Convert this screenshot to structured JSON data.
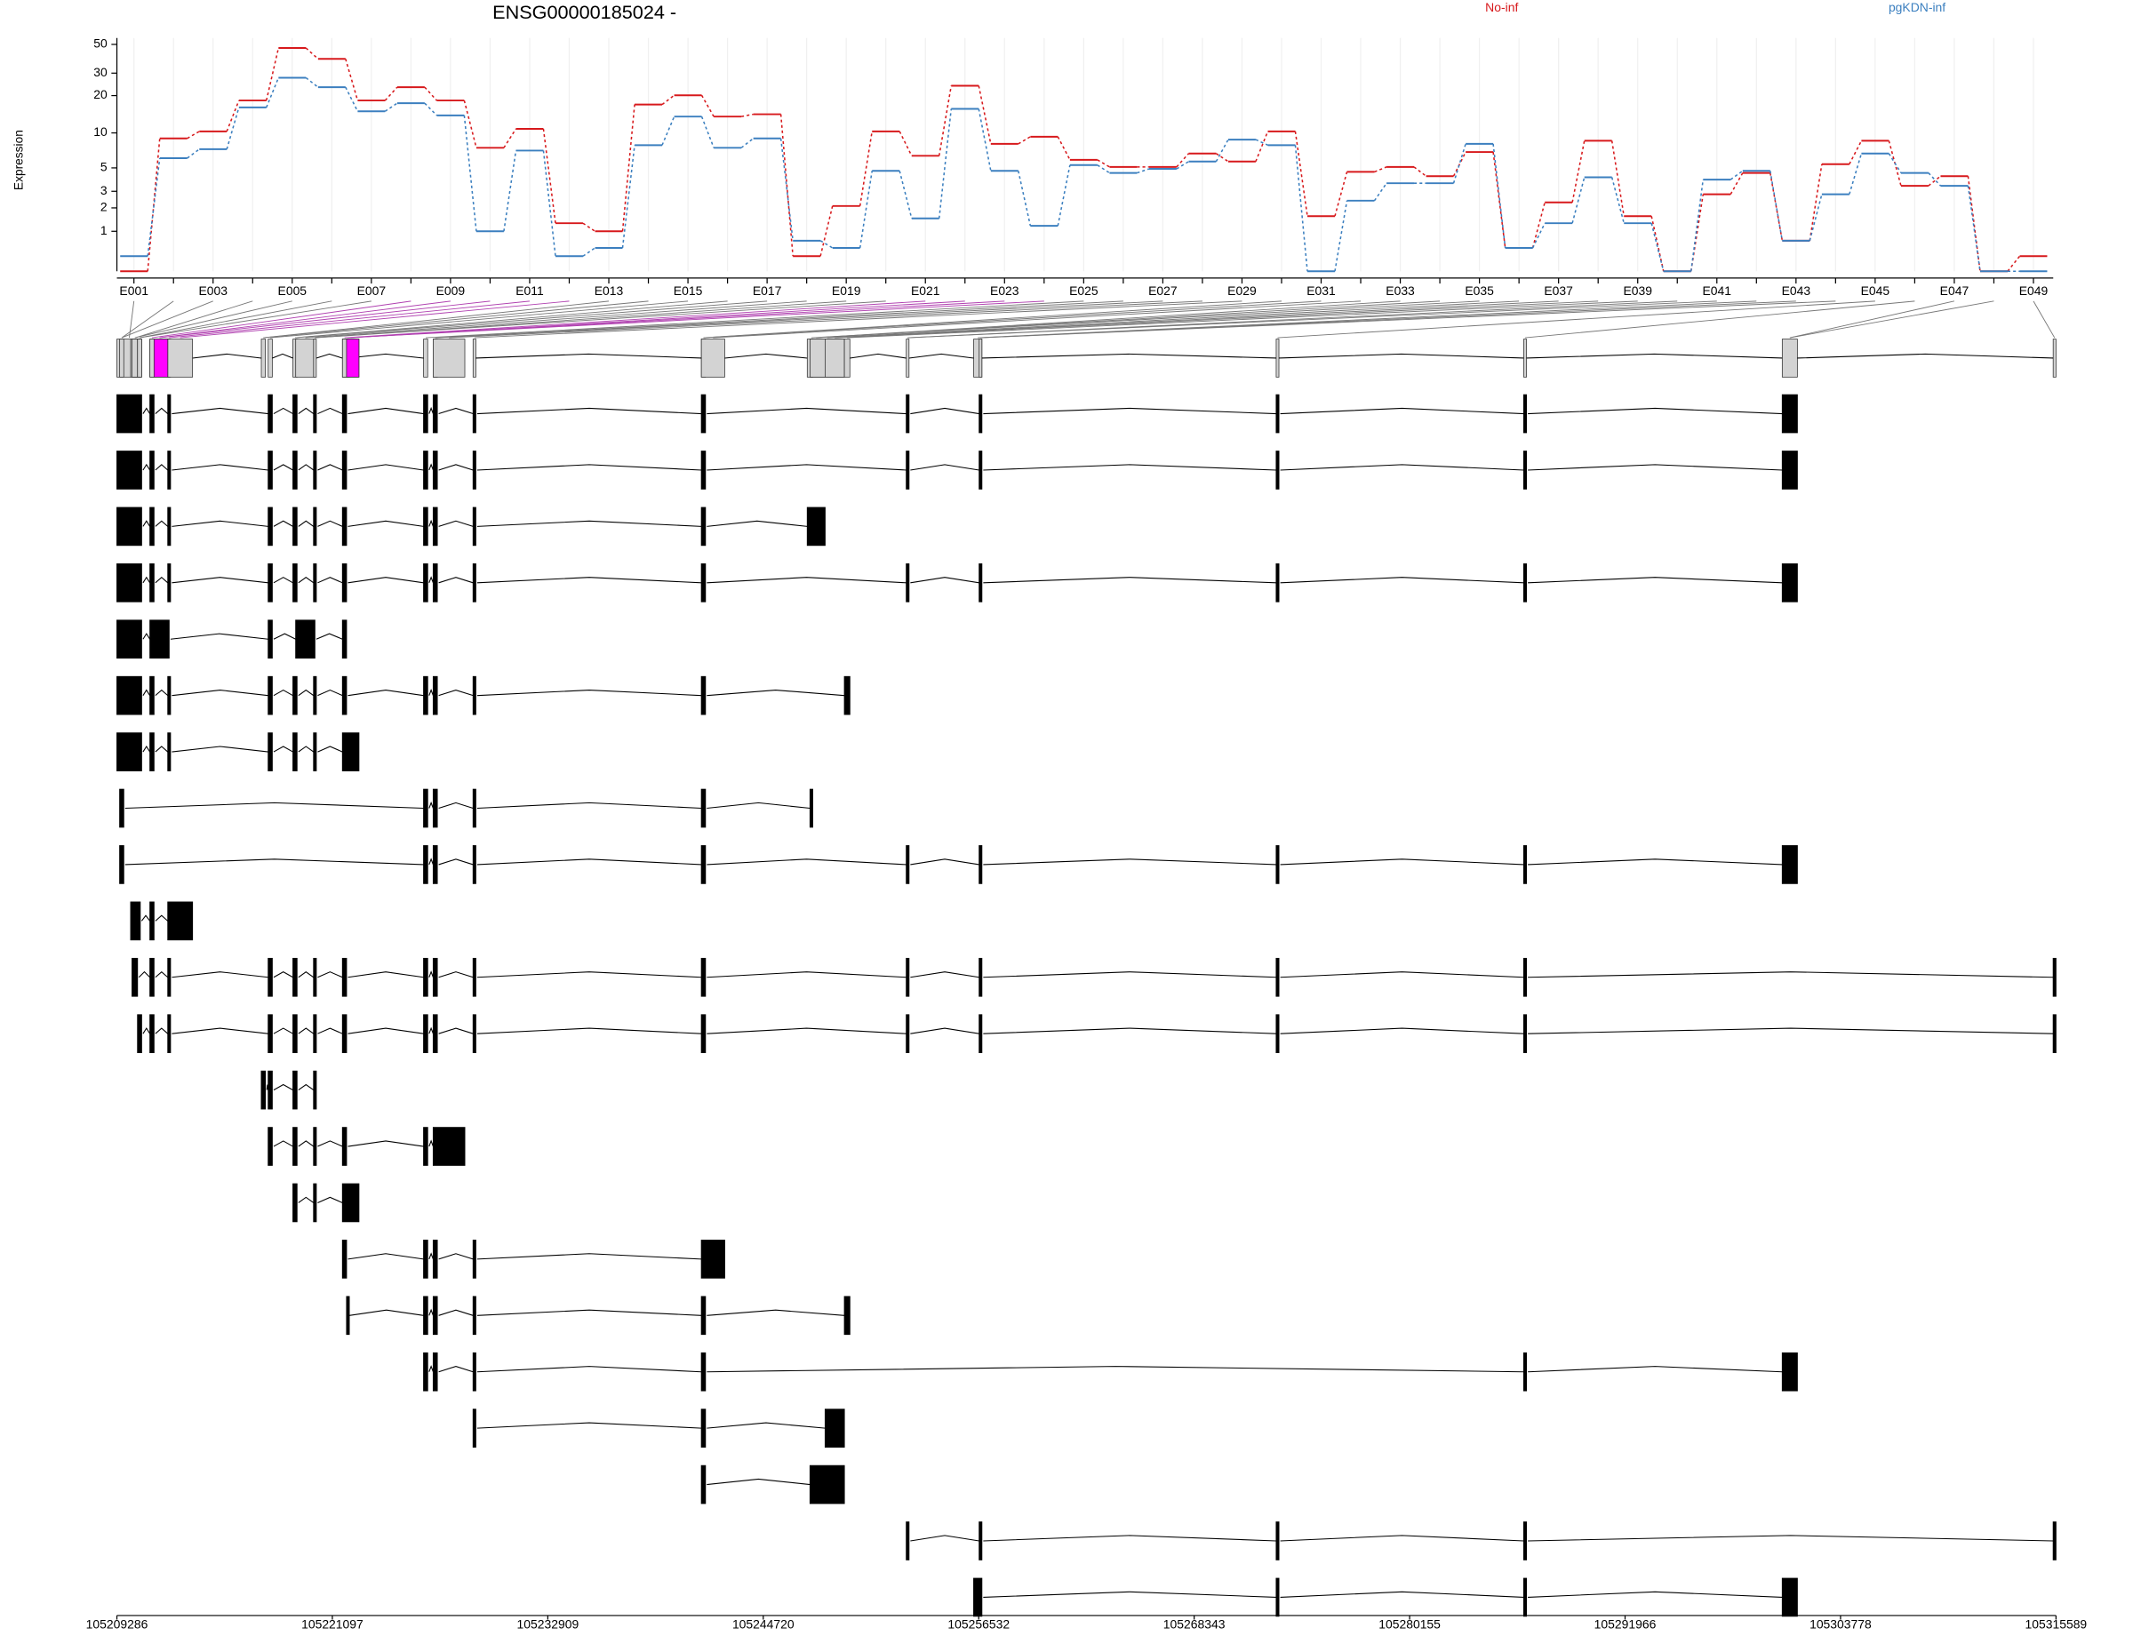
{
  "chart_data": {
    "type": "line",
    "title": "ENSG00000185024 -",
    "y_label": "Expression",
    "categories": [
      "E001",
      null,
      "E003",
      null,
      "E005",
      null,
      "E007",
      null,
      "E009",
      null,
      "E011",
      null,
      "E013",
      null,
      "E015",
      null,
      "E017",
      null,
      "E019",
      null,
      "E021",
      null,
      "E023",
      null,
      "E025",
      null,
      "E027",
      null,
      "E029",
      null,
      "E031",
      null,
      "E033",
      null,
      "E035",
      null,
      "E037",
      null,
      "E039",
      null,
      "E041",
      null,
      "E043",
      null,
      "E045",
      null,
      "E047",
      null,
      "E049"
    ],
    "yscale": "log1p",
    "ylim": [
      0,
      56
    ],
    "yticks": [
      1,
      2,
      3,
      5,
      10,
      20,
      30,
      50
    ],
    "grid": true,
    "series": [
      {
        "name": "No-inf",
        "color": "#d7191c",
        "values": [
          0,
          9,
          10.3,
          18.3,
          46.9,
          38.7,
          18.3,
          23.3,
          18.3,
          7.5,
          10.8,
          1.3,
          1,
          17,
          20.1,
          13.6,
          14.2,
          0.3,
          2.1,
          10.3,
          6.4,
          23.9,
          8.1,
          9.3,
          5.9,
          5.1,
          5.1,
          6.7,
          5.7,
          10.3,
          1.6,
          4.6,
          5.1,
          4.2,
          6.9,
          0.5,
          2.3,
          8.6,
          1.6,
          0,
          2.8,
          4.5,
          0.7,
          5.4,
          8.6,
          3.4,
          4.2,
          0,
          0.3
        ]
      },
      {
        "name": "pgKDN-inf",
        "color": "#3b7fbf",
        "values": [
          0.3,
          6.1,
          7.3,
          16.1,
          27.6,
          23.3,
          15,
          17.4,
          13.9,
          1,
          7.1,
          0.3,
          0.5,
          7.9,
          13.6,
          7.5,
          9,
          0.7,
          0.5,
          4.7,
          1.5,
          15.7,
          4.7,
          1.2,
          5.3,
          4.5,
          4.9,
          5.7,
          8.8,
          7.9,
          0,
          2.4,
          3.6,
          3.6,
          8.1,
          0.5,
          1.3,
          4.1,
          1.3,
          0,
          3.9,
          4.7,
          0.7,
          2.8,
          6.7,
          4.5,
          3.4,
          0,
          0
        ]
      }
    ],
    "gene_model": {
      "xlim": [
        105209286,
        105315589
      ],
      "xticks": [
        105209286,
        105221097,
        105232909,
        105244720,
        105256532,
        105268343,
        105280155,
        105291966,
        105303778,
        105315589
      ],
      "highlight_color": "#ff00ff",
      "highlight": [
        [
          105211322,
          105212075
        ],
        [
          105221876,
          105222555
        ]
      ],
      "transcripts": [
        [
          [
            105209286,
            105210643
          ],
          [
            105211095,
            105211322
          ],
          [
            105212075,
            105212226
          ],
          [
            105217579,
            105217805
          ],
          [
            105218936,
            105219162
          ],
          [
            105220067,
            105220218
          ],
          [
            105221650,
            105221876
          ],
          [
            105226098,
            105226324
          ],
          [
            105226626,
            105226852
          ],
          [
            105228812,
            105228963
          ],
          [
            105241327,
            105241553
          ],
          [
            105252560,
            105252711
          ],
          [
            105256555,
            105256706
          ],
          [
            105272839,
            105272990
          ],
          [
            105286409,
            105286560
          ],
          [
            105300582,
            105301412
          ]
        ],
        [
          [
            105209286,
            105210643
          ],
          [
            105211095,
            105211322
          ],
          [
            105212075,
            105212226
          ],
          [
            105217579,
            105217805
          ],
          [
            105218936,
            105219162
          ],
          [
            105220067,
            105220218
          ],
          [
            105221650,
            105221876
          ],
          [
            105226098,
            105226324
          ],
          [
            105226626,
            105226852
          ],
          [
            105228812,
            105228963
          ],
          [
            105241327,
            105241553
          ],
          [
            105252560,
            105252711
          ],
          [
            105256555,
            105256706
          ],
          [
            105272839,
            105272990
          ],
          [
            105286409,
            105286560
          ],
          [
            105300582,
            105301412
          ]
        ],
        [
          [
            105209286,
            105210643
          ],
          [
            105211095,
            105211322
          ],
          [
            105212075,
            105212226
          ],
          [
            105217579,
            105217805
          ],
          [
            105218936,
            105219162
          ],
          [
            105220067,
            105220218
          ],
          [
            105221650,
            105221876
          ],
          [
            105226098,
            105226324
          ],
          [
            105226626,
            105226852
          ],
          [
            105228812,
            105228963
          ],
          [
            105241327,
            105241553
          ],
          [
            105247132,
            105248112
          ]
        ],
        [
          [
            105209286,
            105210643
          ],
          [
            105211095,
            105211322
          ],
          [
            105212075,
            105212226
          ],
          [
            105217579,
            105217805
          ],
          [
            105218936,
            105219162
          ],
          [
            105220067,
            105220218
          ],
          [
            105221650,
            105221876
          ],
          [
            105226098,
            105226324
          ],
          [
            105226626,
            105226852
          ],
          [
            105228812,
            105228963
          ],
          [
            105241327,
            105241553
          ],
          [
            105252560,
            105252711
          ],
          [
            105256555,
            105256706
          ],
          [
            105272839,
            105272990
          ],
          [
            105286409,
            105286560
          ],
          [
            105300582,
            105301412
          ]
        ],
        [
          [
            105209286,
            105210643
          ],
          [
            105211095,
            105212151
          ],
          [
            105217579,
            105217805
          ],
          [
            105219087,
            105220142
          ],
          [
            105221650,
            105221876
          ]
        ],
        [
          [
            105209286,
            105210643
          ],
          [
            105211095,
            105211322
          ],
          [
            105212075,
            105212226
          ],
          [
            105217579,
            105217805
          ],
          [
            105218936,
            105219162
          ],
          [
            105220067,
            105220218
          ],
          [
            105221650,
            105221876
          ],
          [
            105226098,
            105226324
          ],
          [
            105226626,
            105226852
          ],
          [
            105228812,
            105228963
          ],
          [
            105241327,
            105241553
          ],
          [
            105249168,
            105249469
          ]
        ],
        [
          [
            105209286,
            105210643
          ],
          [
            105211095,
            105211322
          ],
          [
            105212075,
            105212226
          ],
          [
            105217579,
            105217805
          ],
          [
            105218936,
            105219162
          ],
          [
            105220067,
            105220218
          ],
          [
            105221650,
            105222555
          ]
        ],
        [
          [
            105209437,
            105209663
          ],
          [
            105226098,
            105226324
          ],
          [
            105226626,
            105226852
          ],
          [
            105228812,
            105228963
          ],
          [
            105241327,
            105241553
          ],
          [
            105247283,
            105247434
          ]
        ],
        [
          [
            105209437,
            105209663
          ],
          [
            105226098,
            105226324
          ],
          [
            105226626,
            105226852
          ],
          [
            105228812,
            105228963
          ],
          [
            105241327,
            105241553
          ],
          [
            105252560,
            105252711
          ],
          [
            105256555,
            105256706
          ],
          [
            105272839,
            105272990
          ],
          [
            105286409,
            105286560
          ],
          [
            105300582,
            105301412
          ]
        ],
        [
          [
            105210040,
            105210567
          ],
          [
            105211095,
            105211322
          ],
          [
            105212075,
            105213433
          ]
        ],
        [
          [
            105210115,
            105210417
          ],
          [
            105211095,
            105211322
          ],
          [
            105212075,
            105212226
          ],
          [
            105217579,
            105217805
          ],
          [
            105218936,
            105219162
          ],
          [
            105220067,
            105220218
          ],
          [
            105221650,
            105221876
          ],
          [
            105226098,
            105226324
          ],
          [
            105226626,
            105226852
          ],
          [
            105228812,
            105228963
          ],
          [
            105241327,
            105241553
          ],
          [
            105252560,
            105252711
          ],
          [
            105256555,
            105256706
          ],
          [
            105272839,
            105272990
          ],
          [
            105286409,
            105286560
          ],
          [
            105315435,
            105315589
          ]
        ],
        [
          [
            105210417,
            105210643
          ],
          [
            105211095,
            105211322
          ],
          [
            105212075,
            105212226
          ],
          [
            105217579,
            105217805
          ],
          [
            105218936,
            105219162
          ],
          [
            105220067,
            105220218
          ],
          [
            105221650,
            105221876
          ],
          [
            105226098,
            105226324
          ],
          [
            105226626,
            105226852
          ],
          [
            105228812,
            105228963
          ],
          [
            105241327,
            105241553
          ],
          [
            105252560,
            105252711
          ],
          [
            105256555,
            105256706
          ],
          [
            105272839,
            105272990
          ],
          [
            105286409,
            105286560
          ],
          [
            105315435,
            105315589
          ]
        ],
        [
          [
            105217202,
            105217428
          ],
          [
            105217579,
            105217805
          ],
          [
            105218936,
            105219162
          ],
          [
            105220067,
            105220218
          ]
        ],
        [
          [
            105217579,
            105217805
          ],
          [
            105218936,
            105219162
          ],
          [
            105220067,
            105220218
          ],
          [
            105221650,
            105221876
          ],
          [
            105226098,
            105226324
          ],
          [
            105226626,
            105228360
          ]
        ],
        [
          [
            105218936,
            105219162
          ],
          [
            105220067,
            105220218
          ],
          [
            105221650,
            105222555
          ]
        ],
        [
          [
            105221650,
            105221876
          ],
          [
            105226098,
            105226324
          ],
          [
            105226626,
            105226852
          ],
          [
            105228812,
            105228963
          ],
          [
            105241327,
            105242608
          ]
        ],
        [
          [
            105221876,
            105221952
          ],
          [
            105226098,
            105226324
          ],
          [
            105226626,
            105226852
          ],
          [
            105228812,
            105228963
          ],
          [
            105241327,
            105241553
          ],
          [
            105249168,
            105249469
          ]
        ],
        [
          [
            105226098,
            105226324
          ],
          [
            105226626,
            105226852
          ],
          [
            105228812,
            105228963
          ],
          [
            105241327,
            105241553
          ],
          [
            105286409,
            105286560
          ],
          [
            105300582,
            105301412
          ]
        ],
        [
          [
            105228812,
            105228963
          ],
          [
            105241327,
            105241553
          ],
          [
            105248112,
            105249168
          ]
        ],
        [
          [
            105241327,
            105241553
          ],
          [
            105247283,
            105249168
          ]
        ],
        [
          [
            105252560,
            105252711
          ],
          [
            105256555,
            105256706
          ],
          [
            105272839,
            105272990
          ],
          [
            105286409,
            105286560
          ],
          [
            105315435,
            105315589
          ]
        ],
        [
          [
            105256254,
            105256706
          ],
          [
            105272839,
            105272990
          ],
          [
            105286409,
            105286560
          ],
          [
            105300582,
            105301412
          ]
        ]
      ]
    }
  }
}
